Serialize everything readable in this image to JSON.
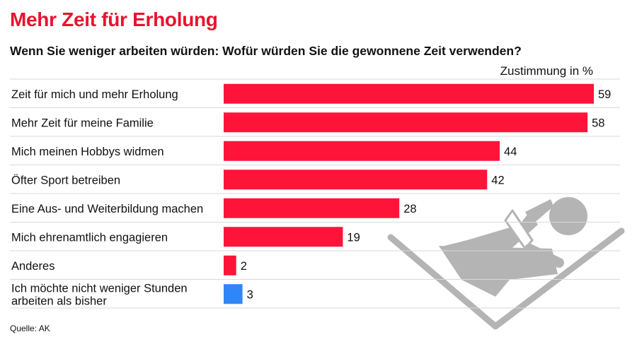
{
  "header": {
    "title": "Mehr Zeit für Erholung",
    "subtitle": "Wenn Sie weniger arbeiten würden: Wofür würden Sie die gewonnene Zeit verwenden?",
    "unit_label": "Zustimmung in %"
  },
  "footer": {
    "source": "Quelle: AK"
  },
  "colors": {
    "accent": "#e8132f",
    "bar_primary": "#ff1439",
    "bar_secondary": "#2f86f6",
    "illustration": "#b4b4b4"
  },
  "illustration_icon": "person-relaxing-reading-icon",
  "chart_data": {
    "type": "bar",
    "orientation": "horizontal",
    "title": "Mehr Zeit für Erholung",
    "subtitle": "Wenn Sie weniger arbeiten würden: Wofür würden Sie die gewonnene Zeit verwenden?",
    "xlabel": "Zustimmung in %",
    "ylabel": "",
    "xlim": [
      0,
      59
    ],
    "grid": false,
    "categories": [
      [
        "Zeit für mich und mehr Erholung"
      ],
      [
        "Mehr Zeit für meine Familie"
      ],
      [
        "Mich meinen Hobbys widmen"
      ],
      [
        "Öfter Sport betreiben"
      ],
      [
        "Eine Aus- und Weiterbildung machen"
      ],
      [
        "Mich ehrenamtlich engagieren"
      ],
      [
        "Anderes"
      ],
      [
        "Ich möchte nicht weniger Stunden",
        "arbeiten als bisher"
      ]
    ],
    "values": [
      59,
      58,
      44,
      42,
      28,
      19,
      2,
      3
    ],
    "highlight": [
      "primary",
      "primary",
      "primary",
      "primary",
      "primary",
      "primary",
      "primary",
      "secondary"
    ]
  }
}
